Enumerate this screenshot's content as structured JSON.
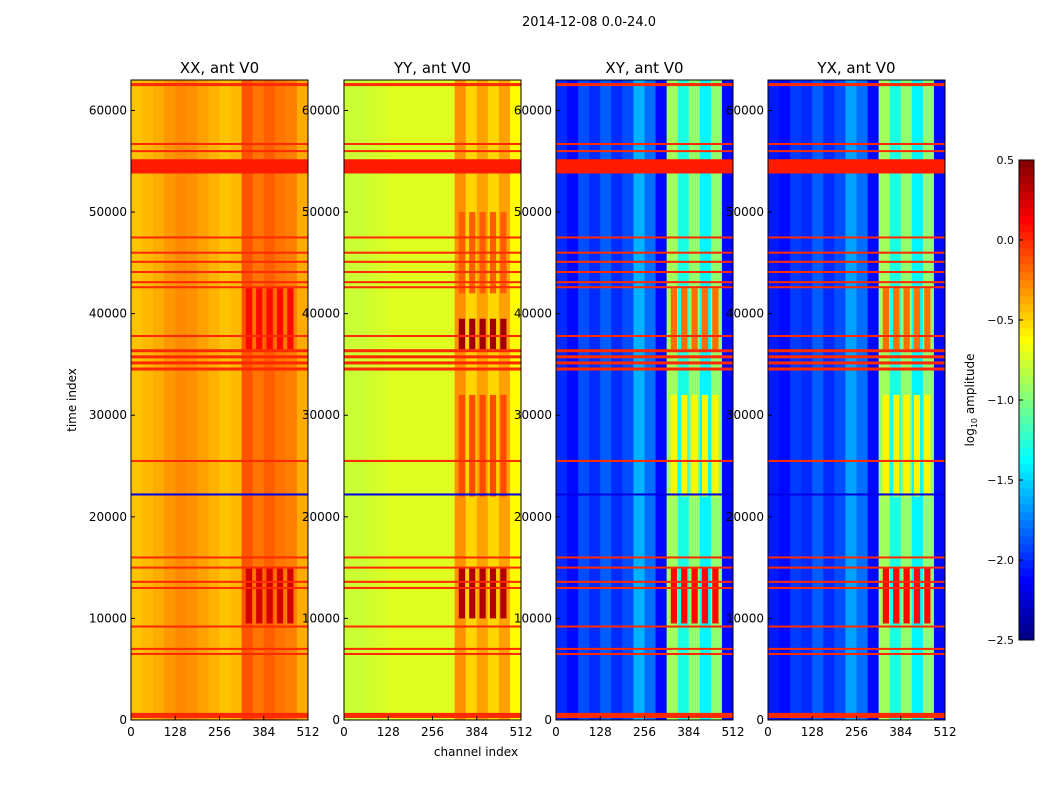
{
  "chart_data": {
    "type": "heatmap",
    "suptitle": "2014-12-08 0.0-24.0",
    "xlabel": "channel index",
    "ylabel": "time index",
    "xlim": [
      0,
      512
    ],
    "ylim": [
      0,
      63000
    ],
    "xticks": [
      "0",
      "128",
      "256",
      "384",
      "512"
    ],
    "yticks": [
      "0",
      "10000",
      "20000",
      "30000",
      "40000",
      "50000",
      "60000"
    ],
    "colormap": "jet",
    "colorbar": {
      "label": "log10 amplitude",
      "label_main": "log",
      "label_sub": "10",
      "label_rest": " amplitude",
      "range": [
        -2.5,
        0.5
      ],
      "ticks": [
        "0.5",
        "0.0",
        "−0.5",
        "−1.0",
        "−1.5",
        "−2.0",
        "−2.5"
      ]
    },
    "channel_bin_width": 32,
    "panels": [
      {
        "title": "XX, ant V0",
        "channel_profile": [
          -0.45,
          -0.42,
          -0.38,
          -0.32,
          -0.28,
          -0.3,
          -0.35,
          -0.4,
          -0.45,
          -0.42,
          -0.12,
          -0.22,
          -0.15,
          -0.22,
          -0.25,
          -0.38
        ],
        "hot_blocks": [
          {
            "t": [
              9500,
              15000
            ],
            "v": 0.25
          },
          {
            "t": [
              36500,
              42500
            ],
            "v": 0.1
          }
        ]
      },
      {
        "title": "YY, ant V0",
        "channel_profile": [
          -0.78,
          -0.78,
          -0.76,
          -0.74,
          -0.72,
          -0.72,
          -0.72,
          -0.72,
          -0.72,
          -0.72,
          -0.3,
          -0.5,
          -0.35,
          -0.5,
          -0.35,
          -0.62
        ],
        "hot_blocks": [
          {
            "t": [
              10000,
              15000
            ],
            "v": 0.35
          },
          {
            "t": [
              36500,
              39500
            ],
            "v": 0.4
          },
          {
            "t": [
              22000,
              32000
            ],
            "v": -0.1
          },
          {
            "t": [
              42000,
              50000
            ],
            "v": -0.15
          }
        ]
      },
      {
        "title": "XY, ant V0",
        "channel_profile": [
          -2.0,
          -2.1,
          -1.9,
          -2.0,
          -1.85,
          -2.0,
          -1.9,
          -1.6,
          -1.8,
          -2.1,
          -0.9,
          -1.3,
          -0.95,
          -1.4,
          -0.95,
          -2.1
        ],
        "hot_blocks": [
          {
            "t": [
              9500,
              15000
            ],
            "v": 0.1
          },
          {
            "t": [
              36500,
              42500
            ],
            "v": -0.2
          },
          {
            "t": [
              22000,
              32000
            ],
            "v": -0.6
          }
        ]
      },
      {
        "title": "YX, ant V0",
        "channel_profile": [
          -2.05,
          -2.1,
          -1.95,
          -2.0,
          -1.85,
          -2.0,
          -1.9,
          -1.65,
          -1.8,
          -2.1,
          -0.9,
          -1.3,
          -0.95,
          -1.4,
          -0.95,
          -2.1
        ],
        "hot_blocks": [
          {
            "t": [
              9500,
              15000
            ],
            "v": 0.1
          },
          {
            "t": [
              36500,
              42500
            ],
            "v": -0.2
          },
          {
            "t": [
              22000,
              32000
            ],
            "v": -0.6
          }
        ]
      }
    ],
    "hot_channel_range": [
      330,
      480
    ],
    "flag_lines": [
      {
        "t": [
          200,
          700
        ],
        "v": 0.0
      },
      {
        "t": [
          6400,
          6600
        ],
        "v": 0.0
      },
      {
        "t": [
          6900,
          7100
        ],
        "v": 0.0
      },
      {
        "t": [
          9100,
          9300
        ],
        "v": 0.0
      },
      {
        "t": [
          12900,
          13100
        ],
        "v": 0.0
      },
      {
        "t": [
          13500,
          13700
        ],
        "v": 0.0
      },
      {
        "t": [
          14900,
          15100
        ],
        "v": 0.0
      },
      {
        "t": [
          15900,
          16100
        ],
        "v": 0.0
      },
      {
        "t": [
          22100,
          22300
        ],
        "v": -2.2
      },
      {
        "t": [
          25400,
          25600
        ],
        "v": 0.0
      },
      {
        "t": [
          34400,
          34700
        ],
        "v": 0.0
      },
      {
        "t": [
          35000,
          35300
        ],
        "v": 0.0
      },
      {
        "t": [
          35600,
          35900
        ],
        "v": 0.0
      },
      {
        "t": [
          36200,
          36500
        ],
        "v": 0.0
      },
      {
        "t": [
          37700,
          37900
        ],
        "v": 0.0
      },
      {
        "t": [
          42500,
          42700
        ],
        "v": 0.0
      },
      {
        "t": [
          43000,
          43200
        ],
        "v": 0.0
      },
      {
        "t": [
          44000,
          44200
        ],
        "v": 0.0
      },
      {
        "t": [
          45000,
          45200
        ],
        "v": 0.0
      },
      {
        "t": [
          45900,
          46100
        ],
        "v": 0.0
      },
      {
        "t": [
          47400,
          47600
        ],
        "v": 0.0
      },
      {
        "t": [
          53800,
          55200
        ],
        "v": 0.05
      },
      {
        "t": [
          55900,
          56100
        ],
        "v": 0.0
      },
      {
        "t": [
          56600,
          56800
        ],
        "v": 0.0
      },
      {
        "t": [
          62400,
          62700
        ],
        "v": 0.0
      }
    ]
  }
}
